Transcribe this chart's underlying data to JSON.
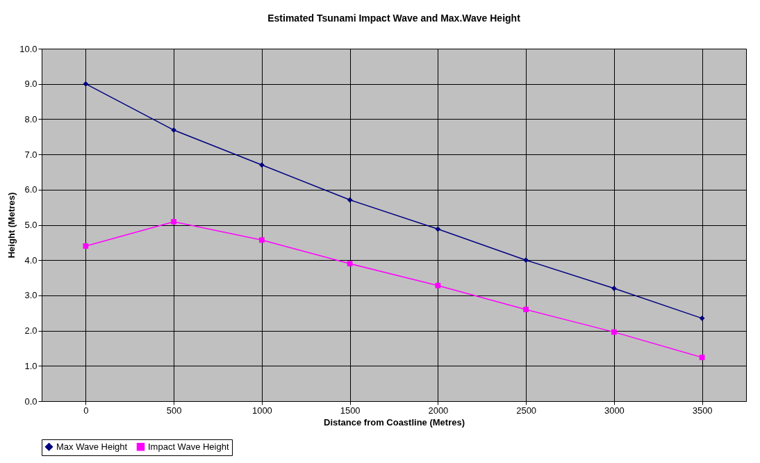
{
  "chart_data": {
    "type": "line",
    "title": "Estimated Tsunami Impact Wave and Max.Wave Height",
    "xlabel": "Distance from Coastline (Metres)",
    "ylabel": "Height (Metres)",
    "categories": [
      "0",
      "500",
      "1000",
      "1500",
      "2000",
      "2500",
      "3000",
      "3500"
    ],
    "series": [
      {
        "name": "Max Wave Height",
        "color": "#000080",
        "marker": "diamond",
        "values": [
          9.0,
          7.69,
          6.7,
          5.71,
          4.88,
          4.0,
          3.2,
          2.35
        ]
      },
      {
        "name": "Impact Wave Height",
        "color": "#ff00ff",
        "marker": "square",
        "values": [
          4.4,
          5.09,
          4.57,
          3.9,
          3.28,
          2.6,
          1.96,
          1.24
        ]
      }
    ],
    "ylim": [
      0,
      10
    ],
    "yticks": [
      {
        "value": 0,
        "label": "0.0"
      },
      {
        "value": 1,
        "label": "1.0"
      },
      {
        "value": 2,
        "label": "2.0"
      },
      {
        "value": 3,
        "label": "3.0"
      },
      {
        "value": 4,
        "label": "4.0"
      },
      {
        "value": 5,
        "label": "5.0"
      },
      {
        "value": 6,
        "label": "6.0"
      },
      {
        "value": 7,
        "label": "7.0"
      },
      {
        "value": 8,
        "label": "8.0"
      },
      {
        "value": 9,
        "label": "9.0"
      },
      {
        "value": 10,
        "label": "10.0"
      }
    ],
    "grid": true,
    "legend": "bottom",
    "line_style": "solid"
  }
}
